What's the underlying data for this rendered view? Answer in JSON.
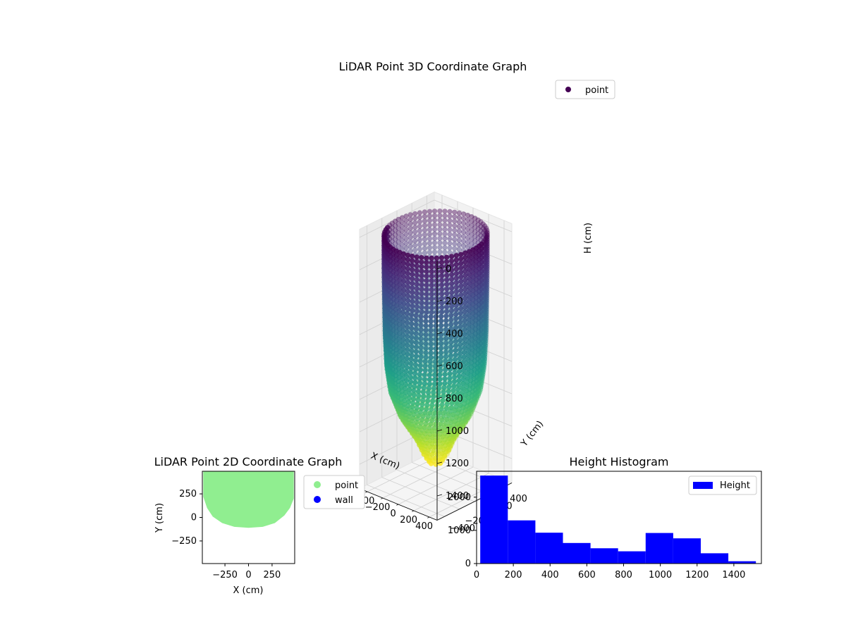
{
  "chart_data": [
    {
      "type": "scatter",
      "projection": "3d",
      "title": "LiDAR Point 3D Coordinate Graph",
      "xlabel": "X (cm)",
      "ylabel": "Y (cm)",
      "zlabel": "H (cm)",
      "xticks": [
        -400,
        -200,
        0,
        200,
        400
      ],
      "yticks": [
        -400,
        -200,
        0,
        200,
        400
      ],
      "zticks": [
        0,
        200,
        400,
        600,
        800,
        1000,
        1200,
        1400
      ],
      "xlim": [
        -500,
        500
      ],
      "ylim": [
        -500,
        500
      ],
      "zlim": [
        1550,
        -50
      ],
      "z_inverted": true,
      "colormap": "viridis",
      "legend": {
        "entries": [
          "point"
        ],
        "placement": "top-right"
      },
      "grid": true,
      "series": [
        {
          "name": "point",
          "shape": "silo: cylinder radius about 480 cm from H 0 to about 850 cm, tapering to a cone of radius about 150 cm at H 1300 cm, bottom tip near H 1400 cm",
          "profile": [
            {
              "h": 0,
              "r": 480
            },
            {
              "h": 200,
              "r": 480
            },
            {
              "h": 400,
              "r": 475
            },
            {
              "h": 600,
              "r": 470
            },
            {
              "h": 800,
              "r": 455
            },
            {
              "h": 950,
              "r": 420
            },
            {
              "h": 1100,
              "r": 330
            },
            {
              "h": 1250,
              "r": 180
            },
            {
              "h": 1350,
              "r": 110
            },
            {
              "h": 1400,
              "r": 60
            }
          ]
        }
      ]
    },
    {
      "type": "scatter",
      "title": "LiDAR Point 2D Coordinate Graph",
      "xlabel": "X (cm)",
      "ylabel": "Y (cm)",
      "xticks": [
        -250,
        0,
        250
      ],
      "yticks": [
        250,
        0,
        -250
      ],
      "xlim": [
        -490,
        490
      ],
      "ylim": [
        -490,
        490
      ],
      "grid": false,
      "legend": {
        "entries": [
          "point",
          "wall"
        ],
        "placement": "outside-right"
      },
      "series": [
        {
          "name": "point",
          "color": "#90ee90",
          "outline": [
            [
              -480,
              490
            ],
            [
              480,
              490
            ],
            [
              480,
              200
            ],
            [
              440,
              100
            ],
            [
              380,
              20
            ],
            [
              280,
              -60
            ],
            [
              150,
              -100
            ],
            [
              0,
              -110
            ],
            [
              -150,
              -100
            ],
            [
              -280,
              -60
            ],
            [
              -380,
              10
            ],
            [
              -440,
              100
            ],
            [
              -480,
              220
            ]
          ]
        },
        {
          "name": "wall",
          "color": "#0000ff",
          "points": []
        }
      ]
    },
    {
      "type": "bar",
      "subtype": "histogram",
      "title": "Height Histogram",
      "xlabel": "",
      "ylabel": "",
      "xticks": [
        0,
        200,
        400,
        600,
        800,
        1000,
        1200,
        1400
      ],
      "yticks": [
        0,
        1000,
        2000
      ],
      "xlim": [
        0,
        1550
      ],
      "ylim": [
        0,
        2780
      ],
      "color": "#0000ff",
      "legend": {
        "entries": [
          "Height"
        ],
        "placement": "top-right"
      },
      "grid": false,
      "bin_edges": [
        20,
        170,
        320,
        470,
        620,
        770,
        920,
        1070,
        1220,
        1370,
        1520
      ],
      "series": [
        {
          "name": "Height",
          "values": [
            2650,
            1300,
            930,
            620,
            460,
            370,
            920,
            760,
            310,
            70
          ]
        }
      ]
    }
  ]
}
